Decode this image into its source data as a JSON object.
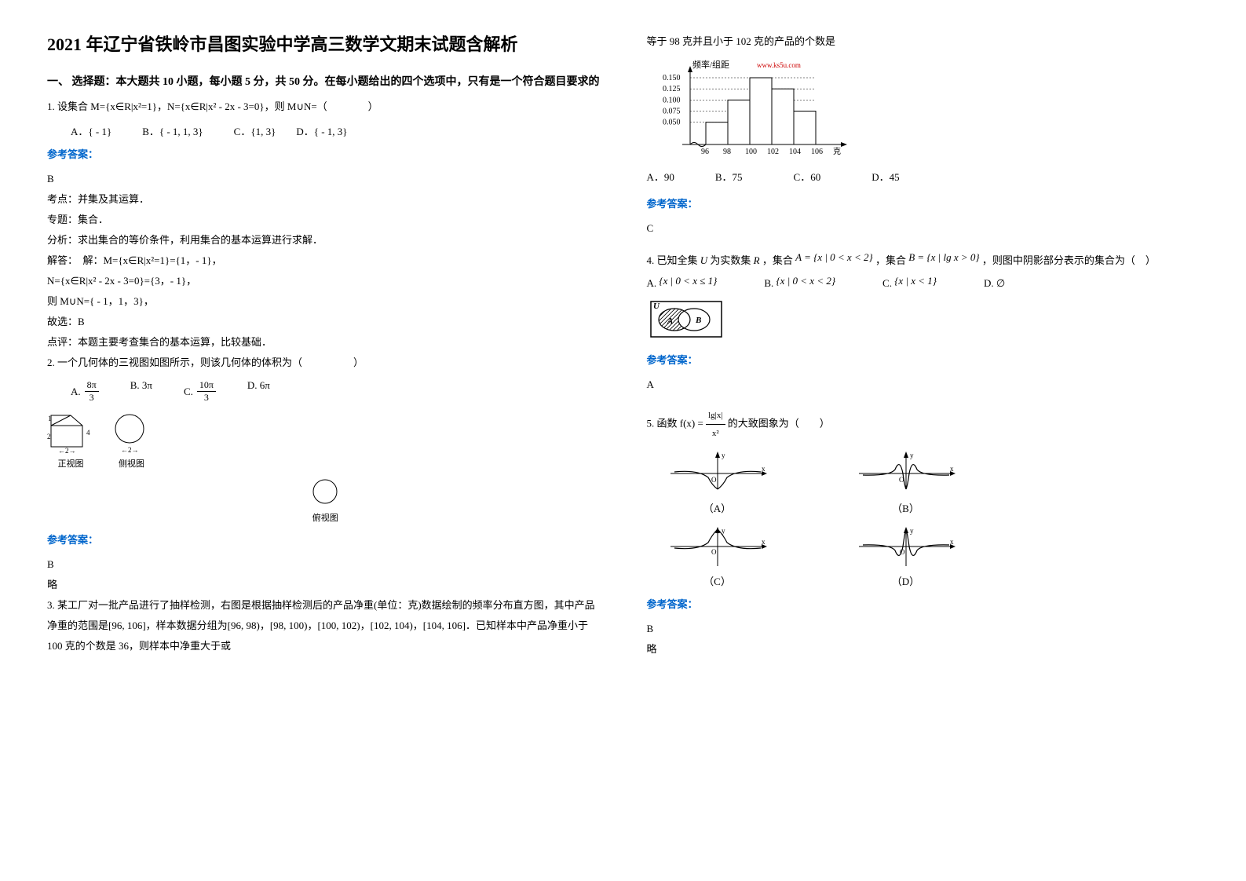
{
  "title": "2021 年辽宁省铁岭市昌图实验中学高三数学文期末试题含解析",
  "section1_header": "一、 选择题：本大题共 10 小题，每小题 5 分，共 50 分。在每小题给出的四个选项中，只有是一个符合题目要求的",
  "q1": {
    "text": "1. 设集合 M={x∈R|x²=1}，N={x∈R|x² - 2x - 3=0}，则 M∪N=（　　　　）",
    "options": "A．{ - 1}　　　B．{ - 1, 1, 3}　　　C．{1, 3}　　D．{ - 1, 3}",
    "answer_label": "参考答案：",
    "answer": "B",
    "explain1": "考点：并集及其运算．",
    "explain2": "专题：集合．",
    "explain3": "分析：求出集合的等价条件，利用集合的基本运算进行求解．",
    "explain4": "解答：　解：M={x∈R|x²=1}={1，- 1}，",
    "explain5": "N={x∈R|x² - 2x - 3=0}={3，- 1}，",
    "explain6": "则 M∪N={ - 1，1，3}，",
    "explain7": "故选：B",
    "explain8": "点评：本题主要考查集合的基本运算，比较基础．"
  },
  "q2": {
    "text": "2. 一个几何体的三视图如图所示，则该几何体的体积为（　　　　　）",
    "optA": "A.",
    "optA_num": "8π",
    "optA_den": "3",
    "optB": "B. 3π",
    "optC": "C.",
    "optC_num": "10π",
    "optC_den": "3",
    "optD": "D. 6π",
    "view1_label": "正视图",
    "view2_label": "侧视图",
    "view3_label": "俯视图",
    "answer_label": "参考答案：",
    "answer": "B",
    "note": "略"
  },
  "q3": {
    "text": "3. 某工厂对一批产品进行了抽样检测，右图是根据抽样检测后的产品净重(单位：克)数据绘制的频率分布直方图，其中产品净重的范围是[96, 106]，样本数据分组为[96, 98)，[98, 100)，[100, 102)，[102, 104)，[104, 106]．已知样本中产品净重小于 100 克的个数是 36，则样本中净重大于或",
    "text_cont": "等于 98 克并且小于 102 克的产品的个数是",
    "histogram": {
      "ylabel": "频率/组距",
      "watermark": "www.ks5u.com",
      "yticks": [
        "0.050",
        "0.075",
        "0.100",
        "0.125",
        "0.150"
      ],
      "xticks": [
        "96",
        "98",
        "100",
        "102",
        "104",
        "106"
      ],
      "xlabel": "克",
      "bars": [
        0.05,
        0.1,
        0.15,
        0.125,
        0.075
      ],
      "bar_fill": "#ffffff",
      "line_color": "#000000"
    },
    "options": "A．90　　　　B．75　　　　　C．60　　　　　D．45",
    "answer_label": "参考答案：",
    "answer": "C"
  },
  "q4": {
    "text_pre": "4. 已知全集",
    "U": "U",
    "text_mid1": " 为实数集",
    "R": "R",
    "text_mid2": "，集合",
    "setA": "A = {x | 0 < x < 2}",
    "text_mid3": "，集合",
    "setB": "B = {x | lg x > 0}",
    "text_end": "，则图中阴影部分表示的集合为（　）",
    "optA_pre": "A.",
    "optA": "{x | 0 < x ≤ 1}",
    "optB_pre": "B.",
    "optB": "{x | 0 < x < 2}",
    "optC_pre": "C.",
    "optC": "{x | x < 1}",
    "optD_pre": "D.",
    "optD": "∅",
    "venn_U": "U",
    "venn_A": "A",
    "venn_B": "B",
    "answer_label": "参考答案：",
    "answer": "A"
  },
  "q5": {
    "text_pre": "5. 函数 f(x) = ",
    "frac_num": "lg|x|",
    "frac_den": "x²",
    "text_post": " 的大致图象为（　　）",
    "labelA": "（A）",
    "labelB": "（B）",
    "labelC": "（C）",
    "labelD": "（D）",
    "answer_label": "参考答案：",
    "answer": "B",
    "note": "略"
  },
  "colors": {
    "text": "#000000",
    "accent": "#0066cc",
    "bg": "#ffffff",
    "watermark": "#cc0000"
  }
}
